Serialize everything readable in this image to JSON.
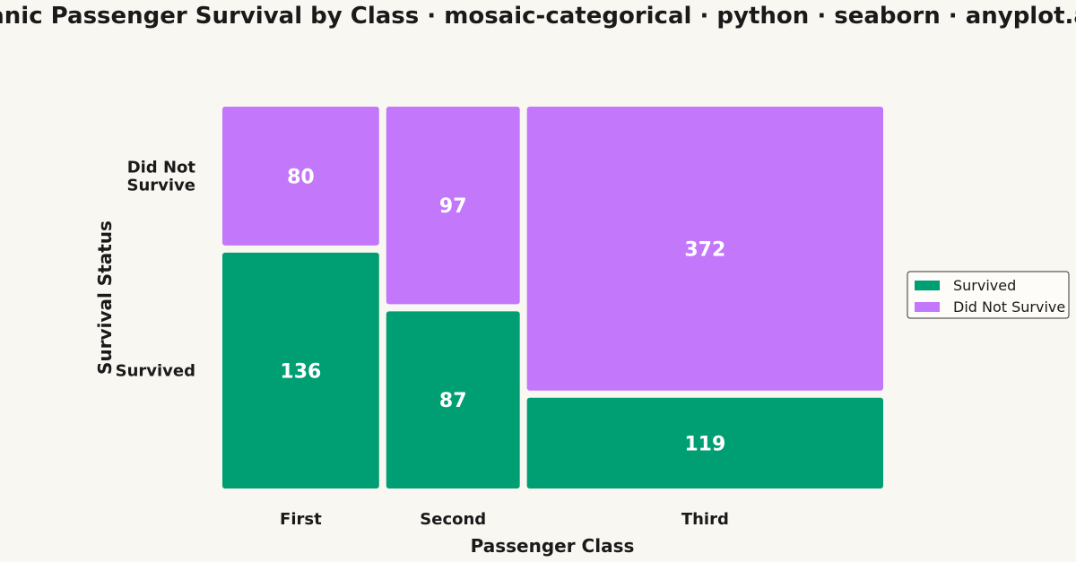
{
  "chart_data": {
    "type": "mosaic",
    "title": "Titanic Passenger Survival by Class · mosaic-categorical · python · seaborn · anyplot.ai",
    "xlabel": "Passenger Class",
    "ylabel": "Survival Status",
    "categories": [
      "First",
      "Second",
      "Third"
    ],
    "y_categories": [
      "Survived",
      "Did Not Survive"
    ],
    "y_tick_labels": [
      "Survived",
      "Did Not Survive"
    ],
    "series": [
      {
        "name": "Survived",
        "values": [
          136,
          87,
          119
        ]
      },
      {
        "name": "Did Not Survive",
        "values": [
          80,
          97,
          372
        ]
      }
    ],
    "legend": {
      "position": "right",
      "entries": [
        "Survived",
        "Did Not Survive"
      ]
    },
    "colors": {
      "Survived": "#009E73",
      "Did Not Survive": "#C377FB"
    }
  }
}
